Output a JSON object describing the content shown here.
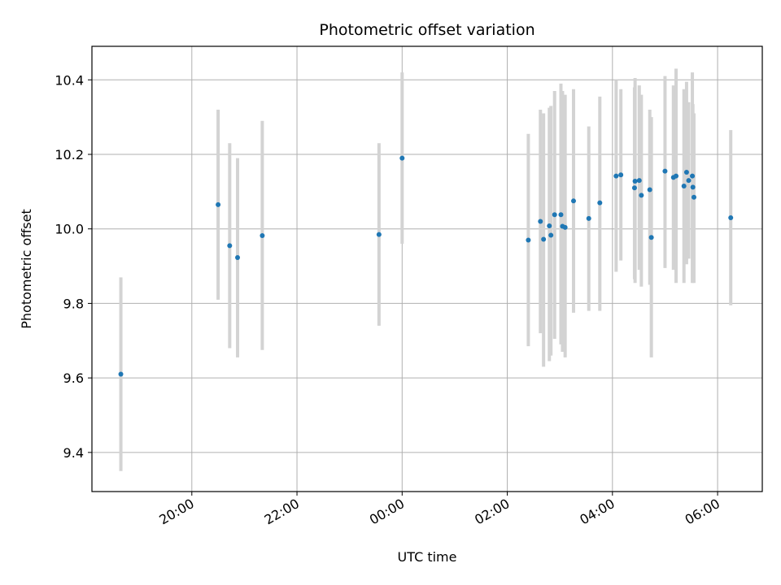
{
  "chart_data": {
    "type": "scatter",
    "title": "Photometric offset variation",
    "xlabel": "UTC time",
    "ylabel": "Photometric offset",
    "x_unit": "hours_utc_from_midnight",
    "xlim": [
      -5.9,
      6.85
    ],
    "ylim": [
      9.295,
      10.49
    ],
    "yticks": [
      {
        "value": 9.4,
        "label": "9.4"
      },
      {
        "value": 9.6,
        "label": "9.6"
      },
      {
        "value": 9.8,
        "label": "9.8"
      },
      {
        "value": 10.0,
        "label": "10.0"
      },
      {
        "value": 10.2,
        "label": "10.2"
      },
      {
        "value": 10.4,
        "label": "10.4"
      }
    ],
    "xticks": [
      {
        "value": -4,
        "label": "20:00"
      },
      {
        "value": -2,
        "label": "22:00"
      },
      {
        "value": 0,
        "label": "00:00"
      },
      {
        "value": 2,
        "label": "02:00"
      },
      {
        "value": 4,
        "label": "04:00"
      },
      {
        "value": 6,
        "label": "06:00"
      }
    ],
    "grid": true,
    "point_color": "#1f77b4",
    "errorbar_color": "#d3d3d3",
    "points": [
      {
        "x": -5.35,
        "y": 9.61,
        "ylow": 9.35,
        "yhigh": 9.87
      },
      {
        "x": -3.5,
        "y": 10.065,
        "ylow": 9.81,
        "yhigh": 10.32
      },
      {
        "x": -3.28,
        "y": 9.955,
        "ylow": 9.68,
        "yhigh": 10.23
      },
      {
        "x": -3.13,
        "y": 9.923,
        "ylow": 9.655,
        "yhigh": 10.19
      },
      {
        "x": -2.66,
        "y": 9.982,
        "ylow": 9.675,
        "yhigh": 10.29
      },
      {
        "x": -0.44,
        "y": 9.985,
        "ylow": 9.74,
        "yhigh": 10.23
      },
      {
        "x": 0.0,
        "y": 10.19,
        "ylow": 9.96,
        "yhigh": 10.42
      },
      {
        "x": 2.4,
        "y": 9.97,
        "ylow": 9.685,
        "yhigh": 10.255
      },
      {
        "x": 2.63,
        "y": 10.02,
        "ylow": 9.72,
        "yhigh": 10.32
      },
      {
        "x": 2.69,
        "y": 9.972,
        "ylow": 9.63,
        "yhigh": 10.31
      },
      {
        "x": 2.8,
        "y": 10.008,
        "ylow": 9.645,
        "yhigh": 10.325
      },
      {
        "x": 2.83,
        "y": 9.983,
        "ylow": 9.66,
        "yhigh": 10.33
      },
      {
        "x": 2.9,
        "y": 10.038,
        "ylow": 9.705,
        "yhigh": 10.37
      },
      {
        "x": 3.02,
        "y": 10.038,
        "ylow": 9.69,
        "yhigh": 10.39
      },
      {
        "x": 3.05,
        "y": 10.007,
        "ylow": 9.67,
        "yhigh": 10.37
      },
      {
        "x": 3.1,
        "y": 10.004,
        "ylow": 9.655,
        "yhigh": 10.36
      },
      {
        "x": 3.26,
        "y": 10.075,
        "ylow": 9.775,
        "yhigh": 10.375
      },
      {
        "x": 3.55,
        "y": 10.028,
        "ylow": 9.78,
        "yhigh": 10.275
      },
      {
        "x": 3.76,
        "y": 10.07,
        "ylow": 9.78,
        "yhigh": 10.355
      },
      {
        "x": 4.07,
        "y": 10.142,
        "ylow": 9.885,
        "yhigh": 10.4
      },
      {
        "x": 4.16,
        "y": 10.145,
        "ylow": 9.915,
        "yhigh": 10.375
      },
      {
        "x": 4.42,
        "y": 10.11,
        "ylow": 9.865,
        "yhigh": 10.38
      },
      {
        "x": 4.43,
        "y": 10.128,
        "ylow": 9.855,
        "yhigh": 10.405
      },
      {
        "x": 4.51,
        "y": 10.13,
        "ylow": 9.89,
        "yhigh": 10.385
      },
      {
        "x": 4.55,
        "y": 10.09,
        "ylow": 9.845,
        "yhigh": 10.36
      },
      {
        "x": 4.71,
        "y": 10.105,
        "ylow": 9.85,
        "yhigh": 10.32
      },
      {
        "x": 4.74,
        "y": 9.977,
        "ylow": 9.655,
        "yhigh": 10.3
      },
      {
        "x": 5.0,
        "y": 10.155,
        "ylow": 9.895,
        "yhigh": 10.41
      },
      {
        "x": 5.16,
        "y": 10.138,
        "ylow": 9.89,
        "yhigh": 10.385
      },
      {
        "x": 5.21,
        "y": 10.142,
        "ylow": 9.855,
        "yhigh": 10.43
      },
      {
        "x": 5.36,
        "y": 10.115,
        "ylow": 9.855,
        "yhigh": 10.375
      },
      {
        "x": 5.41,
        "y": 10.152,
        "ylow": 9.905,
        "yhigh": 10.395
      },
      {
        "x": 5.45,
        "y": 10.13,
        "ylow": 9.92,
        "yhigh": 10.34
      },
      {
        "x": 5.52,
        "y": 10.142,
        "ylow": 9.855,
        "yhigh": 10.42
      },
      {
        "x": 5.53,
        "y": 10.112,
        "ylow": 9.875,
        "yhigh": 10.335
      },
      {
        "x": 5.55,
        "y": 10.085,
        "ylow": 9.855,
        "yhigh": 10.31
      },
      {
        "x": 6.25,
        "y": 10.03,
        "ylow": 9.795,
        "yhigh": 10.265
      }
    ]
  }
}
